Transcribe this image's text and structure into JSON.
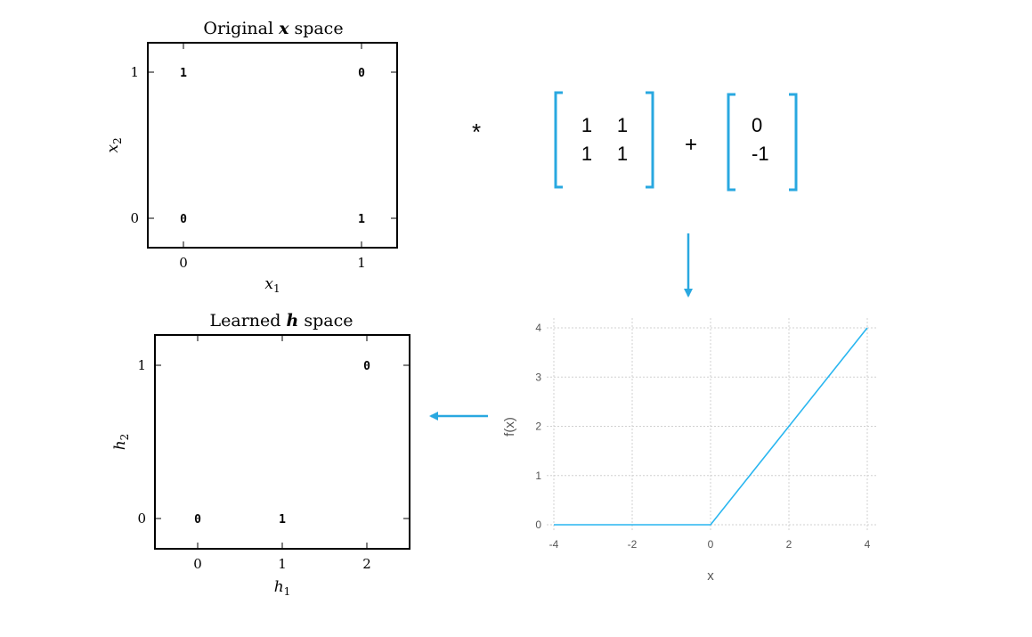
{
  "colors": {
    "accent": "#29a8e0",
    "axis": "#000000",
    "grid": "#d0d0d0",
    "curve": "#29b6f0"
  },
  "plot_x": {
    "title": {
      "prefix": "Original ",
      "var": "x",
      "suffix": " space"
    },
    "xlabel": {
      "base": "x",
      "sub": "1"
    },
    "ylabel": {
      "base": "x",
      "sub": "2"
    },
    "xticks": [
      "0",
      "1"
    ],
    "yticks": [
      "0",
      "1"
    ],
    "points": [
      {
        "x": 0,
        "y": 1,
        "label": "1"
      },
      {
        "x": 1,
        "y": 1,
        "label": "0"
      },
      {
        "x": 0,
        "y": 0,
        "label": "0"
      },
      {
        "x": 1,
        "y": 0,
        "label": "1"
      }
    ]
  },
  "plot_h": {
    "title": {
      "prefix": "Learned ",
      "var": "h",
      "suffix": " space"
    },
    "xlabel": {
      "base": "h",
      "sub": "1"
    },
    "ylabel": {
      "base": "h",
      "sub": "2"
    },
    "xticks": [
      "0",
      "1",
      "2"
    ],
    "yticks": [
      "0",
      "1"
    ],
    "points": [
      {
        "x": 2,
        "y": 1,
        "label": "0"
      },
      {
        "x": 0,
        "y": 0,
        "label": "0"
      },
      {
        "x": 1,
        "y": 0,
        "label": "1"
      }
    ]
  },
  "equation": {
    "multiply": "*",
    "plus": "+",
    "weight_rows": [
      [
        "1",
        "1"
      ],
      [
        "1",
        "1"
      ]
    ],
    "bias_rows": [
      "0",
      "-1"
    ]
  },
  "chart_data": {
    "type": "line",
    "xlabel": "x",
    "ylabel": "f(x)",
    "xlim": [
      -4,
      4
    ],
    "ylim": [
      0,
      4
    ],
    "xticks": [
      "-4",
      "-2",
      "0",
      "2",
      "4"
    ],
    "yticks": [
      "0",
      "1",
      "2",
      "3",
      "4"
    ],
    "grid": true,
    "series": [
      {
        "x": [
          -4,
          -2,
          0,
          2,
          4
        ],
        "y": [
          0,
          0,
          0,
          2,
          4
        ]
      }
    ]
  }
}
